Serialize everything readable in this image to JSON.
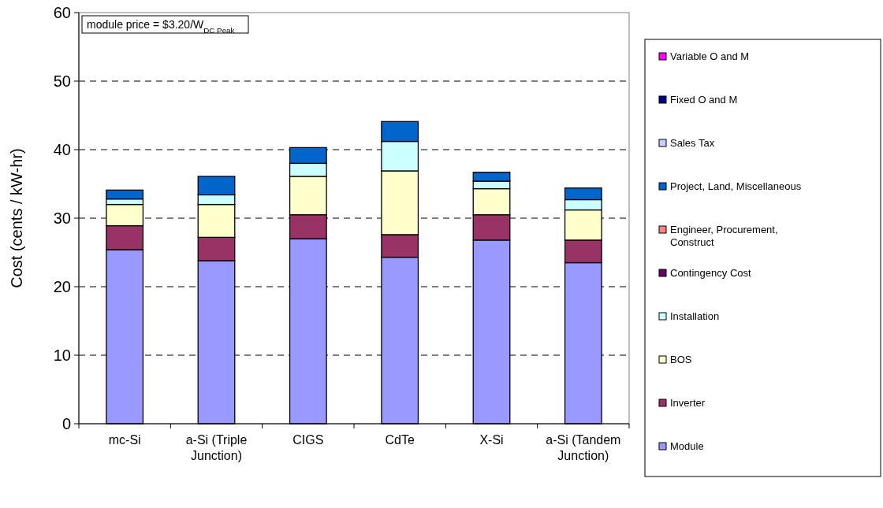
{
  "chart_data": {
    "type": "bar",
    "stacked": true,
    "ylabel": "Cost (cents / kW-hr)",
    "categories": [
      "mc-Si",
      "a-Si (Triple Junction)",
      "CIGS",
      "CdTe",
      "X-Si",
      "a-Si (Tandem Junction)"
    ],
    "series": [
      {
        "name": "Module",
        "color": "#9999ff",
        "values": [
          25.4,
          23.8,
          27.0,
          24.3,
          26.8,
          23.5
        ]
      },
      {
        "name": "Inverter",
        "color": "#993366",
        "values": [
          3.5,
          3.4,
          3.5,
          3.3,
          3.7,
          3.3
        ]
      },
      {
        "name": "BOS",
        "color": "#ffffcc",
        "values": [
          3.1,
          4.8,
          5.6,
          9.3,
          3.8,
          4.4
        ]
      },
      {
        "name": "Installation",
        "color": "#ccffff",
        "values": [
          0.8,
          1.4,
          1.9,
          4.3,
          1.1,
          1.5
        ]
      },
      {
        "name": "Contingency Cost",
        "color": "#660066",
        "values": [
          0,
          0,
          0,
          0,
          0,
          0
        ]
      },
      {
        "name": "Engineer, Procurement, Construct",
        "color": "#ff8080",
        "values": [
          0,
          0,
          0,
          0,
          0,
          0
        ]
      },
      {
        "name": "Project, Land, Miscellaneous",
        "color": "#0066cc",
        "values": [
          1.3,
          2.7,
          2.3,
          2.9,
          1.3,
          1.7
        ]
      },
      {
        "name": "Sales Tax",
        "color": "#ccccff",
        "values": [
          0,
          0,
          0,
          0,
          0,
          0
        ]
      },
      {
        "name": "Fixed O and M",
        "color": "#000080",
        "values": [
          0,
          0,
          0,
          0,
          0,
          0
        ]
      },
      {
        "name": "Variable O and M",
        "color": "#ff00ff",
        "values": [
          0,
          0,
          0,
          0,
          0,
          0
        ]
      }
    ],
    "ylim": [
      0,
      60
    ],
    "yticks": [
      0,
      10,
      20,
      30,
      40,
      50,
      60
    ],
    "grid": "y",
    "legend": "right",
    "annotations": [
      "module price = $3.20/W$_{DC Peak}$"
    ]
  }
}
